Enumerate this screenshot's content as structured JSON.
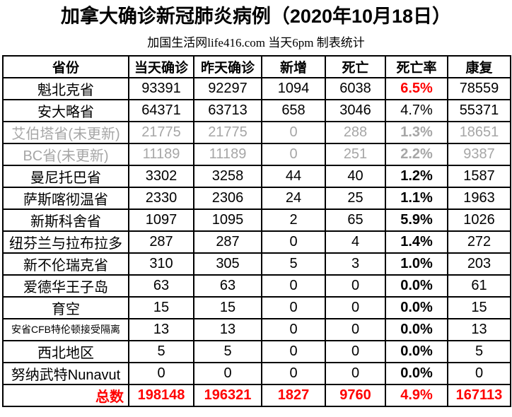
{
  "title": "加拿大确诊新冠肺炎病例（2020年10月18日）",
  "subtitle": "加国生活网life416.com 当天6pm 制表统计",
  "colors": {
    "text": "#000000",
    "muted_row_text": "#a6a6a6",
    "accent_red": "#ff0000",
    "border": "#000000",
    "background": "#ffffff"
  },
  "table": {
    "columns": [
      "省份",
      "当天确诊",
      "昨天确诊",
      "新增",
      "死亡",
      "死亡率",
      "康复"
    ],
    "rows": [
      {
        "province": "魁北克省",
        "today": "93391",
        "yesterday": "92297",
        "new_cases": "1094",
        "deaths": "6038",
        "death_rate": "6.5%",
        "recovered": "78559",
        "muted": false,
        "small_name": false,
        "rate_red": true,
        "rate_bold": true
      },
      {
        "province": "安大略省",
        "today": "64371",
        "yesterday": "63713",
        "new_cases": "658",
        "deaths": "3046",
        "death_rate": "4.7%",
        "recovered": "55371",
        "muted": false,
        "small_name": false,
        "rate_red": false,
        "rate_bold": false
      },
      {
        "province": "艾伯塔省(未更新)",
        "today": "21775",
        "yesterday": "21775",
        "new_cases": "0",
        "deaths": "288",
        "death_rate": "1.3%",
        "recovered": "18651",
        "muted": true,
        "small_name": false,
        "rate_red": false,
        "rate_bold": true
      },
      {
        "province": "BC省(未更新)",
        "today": "11189",
        "yesterday": "11189",
        "new_cases": "0",
        "deaths": "251",
        "death_rate": "2.2%",
        "recovered": "9387",
        "muted": true,
        "small_name": false,
        "rate_red": false,
        "rate_bold": true
      },
      {
        "province": "曼尼托巴省",
        "today": "3302",
        "yesterday": "3258",
        "new_cases": "44",
        "deaths": "40",
        "death_rate": "1.2%",
        "recovered": "1587",
        "muted": false,
        "small_name": false,
        "rate_red": false,
        "rate_bold": true
      },
      {
        "province": "萨斯喀彻温省",
        "today": "2330",
        "yesterday": "2306",
        "new_cases": "24",
        "deaths": "25",
        "death_rate": "1.1%",
        "recovered": "1963",
        "muted": false,
        "small_name": false,
        "rate_red": false,
        "rate_bold": true
      },
      {
        "province": "新斯科舍省",
        "today": "1097",
        "yesterday": "1095",
        "new_cases": "2",
        "deaths": "65",
        "death_rate": "5.9%",
        "recovered": "1026",
        "muted": false,
        "small_name": false,
        "rate_red": false,
        "rate_bold": true
      },
      {
        "province": "纽芬兰与拉布拉多",
        "today": "287",
        "yesterday": "287",
        "new_cases": "0",
        "deaths": "4",
        "death_rate": "1.4%",
        "recovered": "272",
        "muted": false,
        "small_name": false,
        "rate_red": false,
        "rate_bold": true
      },
      {
        "province": "新不伦瑞克省",
        "today": "310",
        "yesterday": "305",
        "new_cases": "5",
        "deaths": "3",
        "death_rate": "1.0%",
        "recovered": "203",
        "muted": false,
        "small_name": false,
        "rate_red": false,
        "rate_bold": true
      },
      {
        "province": "爱德华王子岛",
        "today": "63",
        "yesterday": "63",
        "new_cases": "0",
        "deaths": "0",
        "death_rate": "0.0%",
        "recovered": "61",
        "muted": false,
        "small_name": false,
        "rate_red": false,
        "rate_bold": true
      },
      {
        "province": "育空",
        "today": "15",
        "yesterday": "15",
        "new_cases": "0",
        "deaths": "0",
        "death_rate": "0.0%",
        "recovered": "15",
        "muted": false,
        "small_name": false,
        "rate_red": false,
        "rate_bold": true
      },
      {
        "province": "安省CFB特伦顿接受隔离",
        "today": "13",
        "yesterday": "13",
        "new_cases": "0",
        "deaths": "0",
        "death_rate": "0.0%",
        "recovered": "13",
        "muted": false,
        "small_name": true,
        "rate_red": false,
        "rate_bold": true
      },
      {
        "province": "西北地区",
        "today": "5",
        "yesterday": "5",
        "new_cases": "0",
        "deaths": "0",
        "death_rate": "0.0%",
        "recovered": "5",
        "muted": false,
        "small_name": false,
        "rate_red": false,
        "rate_bold": true
      },
      {
        "province": "努纳武特Nunavut",
        "today": "0",
        "yesterday": "0",
        "new_cases": "0",
        "deaths": "0",
        "death_rate": "0.0%",
        "recovered": "0",
        "muted": false,
        "small_name": false,
        "rate_red": false,
        "rate_bold": true
      }
    ],
    "total": {
      "label": "总数",
      "today": "198148",
      "yesterday": "196321",
      "new_cases": "1827",
      "deaths": "9760",
      "death_rate": "4.9%",
      "recovered": "167113"
    }
  }
}
